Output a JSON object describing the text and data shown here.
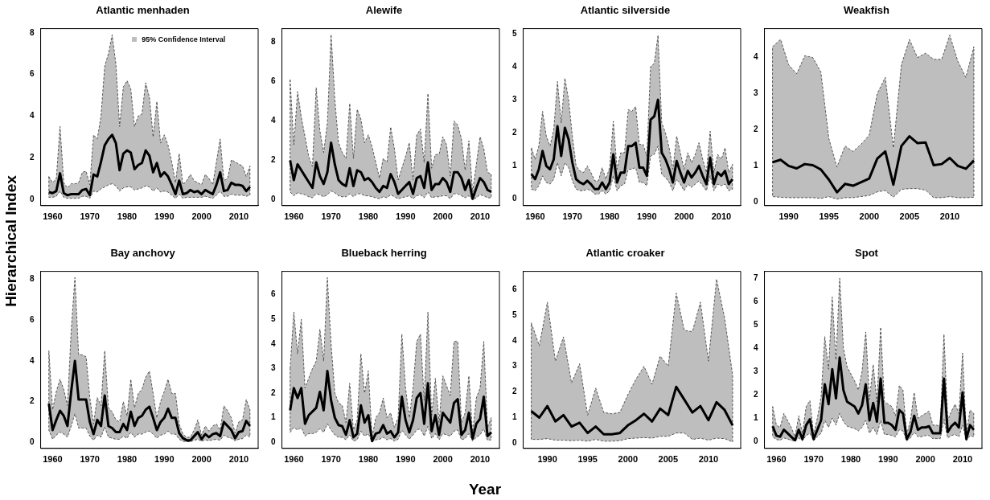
{
  "chart_data": [
    {
      "type": "line",
      "title": "Atlantic menhaden",
      "ylabel": "Hierarchical Index",
      "annotations": [
        "95% Confidence Interval"
      ],
      "xlim": [
        1956.8,
        2015.2
      ],
      "xticks": [
        1960,
        1970,
        1980,
        1990,
        2000,
        2010
      ],
      "ylim": [
        -0.3,
        8.2
      ],
      "yticks": [
        0,
        2,
        4,
        6,
        8
      ],
      "x": [
        1959,
        1960,
        1961,
        1962,
        1963,
        1964,
        1965,
        1966,
        1967,
        1968,
        1969,
        1970,
        1971,
        1972,
        1973,
        1974,
        1975,
        1976,
        1977,
        1978,
        1979,
        1980,
        1981,
        1982,
        1983,
        1984,
        1985,
        1986,
        1987,
        1988,
        1989,
        1990,
        1991,
        1992,
        1993,
        1994,
        1995,
        1996,
        1997,
        1998,
        1999,
        2000,
        2001,
        2002,
        2003,
        2004,
        2005,
        2006,
        2007,
        2008,
        2009,
        2010,
        2011,
        2012,
        2013
      ],
      "series": [
        {
          "color": "#000000",
          "values": [
            0.35,
            0.3,
            0.4,
            1.25,
            0.3,
            0.2,
            0.25,
            0.25,
            0.25,
            0.45,
            0.5,
            0.2,
            1.2,
            1.1,
            1.8,
            2.6,
            2.9,
            3.1,
            2.7,
            1.4,
            2.2,
            2.35,
            2.25,
            1.45,
            1.65,
            1.75,
            2.35,
            2.1,
            1.3,
            1.75,
            1.1,
            1.3,
            1.1,
            0.7,
            0.25,
            0.9,
            0.25,
            0.3,
            0.45,
            0.35,
            0.4,
            0.25,
            0.45,
            0.35,
            0.25,
            0.7,
            1.3,
            0.4,
            0.45,
            0.8,
            0.7,
            0.7,
            0.65,
            0.4,
            0.6
          ],
          "upper": [
            1.1,
            0.8,
            1.0,
            3.5,
            0.8,
            0.55,
            0.75,
            0.75,
            0.8,
            1.3,
            1.35,
            0.7,
            3.1,
            2.9,
            4.0,
            6.4,
            7.0,
            7.9,
            6.5,
            3.5,
            5.4,
            5.7,
            5.3,
            3.5,
            4.0,
            4.1,
            5.6,
            4.9,
            3.0,
            4.7,
            2.7,
            3.1,
            2.6,
            1.8,
            0.8,
            2.2,
            0.7,
            0.9,
            1.2,
            0.9,
            0.8,
            0.7,
            1.2,
            1.0,
            0.7,
            1.8,
            2.9,
            0.9,
            1.0,
            1.9,
            1.8,
            1.7,
            1.6,
            1.1,
            1.6
          ],
          "lower": [
            0.1,
            0.1,
            0.15,
            0.4,
            0.1,
            0.05,
            0.05,
            0.05,
            0.05,
            0.15,
            0.15,
            0.05,
            0.4,
            0.35,
            0.5,
            0.6,
            0.7,
            0.75,
            0.65,
            0.4,
            0.55,
            0.6,
            0.6,
            0.45,
            0.5,
            0.55,
            0.65,
            0.6,
            0.4,
            0.55,
            0.35,
            0.4,
            0.35,
            0.2,
            0.05,
            0.25,
            0.05,
            0.1,
            0.1,
            0.1,
            0.1,
            0.1,
            0.15,
            0.1,
            0.05,
            0.2,
            0.4,
            0.15,
            0.15,
            0.25,
            0.2,
            0.2,
            0.2,
            0.15,
            0.2
          ]
        }
      ]
    },
    {
      "type": "line",
      "title": "Alewife",
      "xlim": [
        1956.8,
        2015.2
      ],
      "xticks": [
        1960,
        1970,
        1980,
        1990,
        2000,
        2010
      ],
      "ylim": [
        -0.3,
        8.7
      ],
      "yticks": [
        0,
        2,
        4,
        6,
        8
      ],
      "x": [
        1959,
        1960,
        1961,
        1962,
        1963,
        1964,
        1965,
        1966,
        1967,
        1968,
        1969,
        1970,
        1971,
        1972,
        1973,
        1974,
        1975,
        1976,
        1977,
        1978,
        1979,
        1980,
        1981,
        1982,
        1983,
        1984,
        1985,
        1986,
        1987,
        1988,
        1989,
        1990,
        1991,
        1992,
        1993,
        1994,
        1995,
        1996,
        1997,
        1998,
        1999,
        2000,
        2001,
        2002,
        2003,
        2004,
        2005,
        2006,
        2007,
        2008,
        2009,
        2010,
        2011,
        2012,
        2013
      ],
      "series": [
        {
          "color": "#000000",
          "values": [
            2.0,
            1.0,
            1.8,
            1.5,
            1.2,
            0.9,
            0.6,
            1.9,
            1.2,
            0.8,
            1.4,
            2.9,
            1.8,
            1.0,
            0.8,
            0.7,
            1.6,
            0.7,
            1.5,
            1.4,
            1.0,
            1.1,
            0.9,
            0.6,
            0.4,
            0.7,
            0.6,
            1.3,
            0.9,
            0.3,
            0.5,
            0.7,
            0.9,
            0.3,
            1.1,
            1.2,
            0.6,
            1.9,
            0.5,
            0.8,
            0.8,
            1.1,
            0.9,
            0.4,
            1.4,
            1.4,
            1.1,
            0.5,
            1.0,
            0.05,
            0.6,
            1.1,
            0.9,
            0.5,
            0.4
          ],
          "upper": [
            6.1,
            2.8,
            5.5,
            4.2,
            3.2,
            2.2,
            1.7,
            5.7,
            3.5,
            2.4,
            3.9,
            8.4,
            5.1,
            2.9,
            2.4,
            2.1,
            4.9,
            2.1,
            4.6,
            4.1,
            2.9,
            3.3,
            2.7,
            1.9,
            1.1,
            2.1,
            1.9,
            3.7,
            2.6,
            1.0,
            1.6,
            2.2,
            2.9,
            1.0,
            3.3,
            3.6,
            1.9,
            5.4,
            1.6,
            2.3,
            2.3,
            3.2,
            2.8,
            1.2,
            4.0,
            3.8,
            3.1,
            1.5,
            3.0,
            0.4,
            1.8,
            3.2,
            2.6,
            1.4,
            1.3
          ],
          "lower": [
            0.4,
            0.2,
            0.35,
            0.3,
            0.25,
            0.15,
            0.1,
            0.3,
            0.25,
            0.15,
            0.25,
            0.45,
            0.35,
            0.2,
            0.15,
            0.15,
            0.3,
            0.15,
            0.3,
            0.3,
            0.2,
            0.2,
            0.15,
            0.1,
            0.05,
            0.15,
            0.1,
            0.25,
            0.15,
            0.05,
            0.1,
            0.15,
            0.2,
            0.05,
            0.2,
            0.25,
            0.1,
            0.4,
            0.1,
            0.15,
            0.15,
            0.2,
            0.2,
            0.05,
            0.3,
            0.3,
            0.2,
            0.1,
            0.2,
            0,
            0.1,
            0.25,
            0.2,
            0.1,
            0.1
          ]
        }
      ]
    },
    {
      "type": "line",
      "title": "Atlantic silverside",
      "xlim": [
        1956.8,
        2015.2
      ],
      "xticks": [
        1960,
        1970,
        1980,
        1990,
        2000,
        2010
      ],
      "ylim": [
        -0.2,
        5.15
      ],
      "yticks": [
        0,
        1,
        2,
        3,
        4,
        5
      ],
      "x": [
        1959,
        1960,
        1961,
        1962,
        1963,
        1964,
        1965,
        1966,
        1967,
        1968,
        1969,
        1970,
        1971,
        1972,
        1973,
        1974,
        1975,
        1976,
        1977,
        1978,
        1979,
        1980,
        1981,
        1982,
        1983,
        1984,
        1985,
        1986,
        1987,
        1988,
        1989,
        1990,
        1991,
        1992,
        1993,
        1994,
        1995,
        1996,
        1997,
        1998,
        1999,
        2000,
        2001,
        2002,
        2003,
        2004,
        2005,
        2006,
        2007,
        2008,
        2009,
        2010,
        2011,
        2012,
        2013
      ],
      "series": [
        {
          "color": "#000000",
          "values": [
            0.75,
            0.6,
            0.9,
            1.45,
            1.0,
            0.9,
            1.2,
            2.2,
            1.3,
            2.15,
            1.8,
            1.1,
            0.6,
            0.5,
            0.45,
            0.55,
            0.45,
            0.3,
            0.3,
            0.5,
            0.3,
            0.5,
            1.35,
            0.5,
            0.8,
            0.8,
            1.6,
            1.6,
            1.7,
            0.95,
            0.95,
            0.7,
            2.4,
            2.5,
            3.0,
            1.4,
            1.2,
            0.9,
            0.5,
            1.15,
            0.8,
            0.5,
            0.85,
            0.65,
            0.8,
            1.0,
            0.7,
            0.45,
            1.25,
            0.45,
            0.8,
            0.7,
            0.85,
            0.45,
            0.6
          ],
          "upper": [
            1.55,
            1.2,
            1.6,
            2.65,
            1.9,
            1.6,
            2.1,
            3.55,
            2.3,
            3.65,
            3.0,
            1.9,
            1.0,
            0.85,
            0.8,
            1.0,
            0.8,
            0.55,
            0.55,
            0.95,
            0.6,
            0.95,
            2.35,
            0.9,
            1.4,
            1.4,
            2.7,
            2.65,
            2.8,
            1.65,
            1.65,
            1.3,
            4.0,
            4.1,
            4.95,
            2.3,
            2.0,
            1.55,
            0.9,
            1.9,
            1.4,
            0.9,
            1.4,
            1.1,
            1.35,
            1.7,
            1.2,
            0.8,
            2.05,
            0.8,
            1.35,
            1.2,
            1.55,
            0.8,
            1.05
          ],
          "lower": [
            0.3,
            0.25,
            0.4,
            0.7,
            0.5,
            0.45,
            0.6,
            1.1,
            0.7,
            1.1,
            0.95,
            0.55,
            0.3,
            0.25,
            0.25,
            0.3,
            0.25,
            0.15,
            0.15,
            0.25,
            0.15,
            0.25,
            0.7,
            0.25,
            0.4,
            0.45,
            0.9,
            0.9,
            0.95,
            0.5,
            0.5,
            0.4,
            1.3,
            1.35,
            1.6,
            0.75,
            0.65,
            0.5,
            0.25,
            0.6,
            0.45,
            0.25,
            0.45,
            0.35,
            0.45,
            0.55,
            0.4,
            0.25,
            0.7,
            0.25,
            0.45,
            0.4,
            0.45,
            0.25,
            0.3
          ]
        }
      ]
    },
    {
      "type": "line",
      "title": "Weakfish",
      "xlim": [
        1987,
        2014
      ],
      "xticks": [
        1990,
        1995,
        2000,
        2005,
        2010
      ],
      "ylim": [
        -0.1,
        4.8
      ],
      "yticks": [
        0,
        1,
        2,
        3,
        4
      ],
      "x": [
        1988,
        1989,
        1990,
        1991,
        1992,
        1993,
        1994,
        1995,
        1996,
        1997,
        1998,
        1999,
        2000,
        2001,
        2002,
        2003,
        2004,
        2005,
        2006,
        2007,
        2008,
        2009,
        2010,
        2011,
        2012,
        2013
      ],
      "series": [
        {
          "color": "#000000",
          "values": [
            1.1,
            1.17,
            1.0,
            0.93,
            1.05,
            1.02,
            0.9,
            0.62,
            0.27,
            0.5,
            0.45,
            0.55,
            0.65,
            1.2,
            1.4,
            0.48,
            1.55,
            1.82,
            1.63,
            1.65,
            1.02,
            1.05,
            1.22,
            1.0,
            0.92,
            1.15
          ],
          "upper": [
            4.3,
            4.5,
            3.8,
            3.55,
            4.05,
            4.0,
            3.6,
            1.75,
            0.97,
            1.55,
            1.4,
            1.6,
            1.85,
            3.0,
            3.45,
            1.5,
            3.8,
            4.5,
            4.0,
            4.12,
            3.95,
            3.95,
            4.62,
            3.9,
            3.45,
            4.3
          ],
          "lower": [
            0.15,
            0.13,
            0.12,
            0.12,
            0.12,
            0.12,
            0.1,
            0.15,
            0.08,
            0.12,
            0.12,
            0.15,
            0.18,
            0.28,
            0.32,
            0.13,
            0.35,
            0.37,
            0.37,
            0.33,
            0.12,
            0.12,
            0.15,
            0.12,
            0.12,
            0.13
          ]
        }
      ]
    },
    {
      "type": "line",
      "title": "Bay anchovy",
      "xlim": [
        1956.8,
        2015.2
      ],
      "xticks": [
        1960,
        1970,
        1980,
        1990,
        2000,
        2010
      ],
      "ylim": [
        -0.3,
        8.4
      ],
      "yticks": [
        0,
        2,
        4,
        6,
        8
      ],
      "x": [
        1959,
        1960,
        1961,
        1962,
        1963,
        1964,
        1965,
        1966,
        1967,
        1968,
        1969,
        1970,
        1971,
        1972,
        1973,
        1974,
        1975,
        1976,
        1977,
        1978,
        1979,
        1980,
        1981,
        1982,
        1983,
        1984,
        1985,
        1986,
        1987,
        1988,
        1989,
        1990,
        1991,
        1992,
        1993,
        1994,
        1995,
        1996,
        1997,
        1998,
        1999,
        2000,
        2001,
        2002,
        2003,
        2004,
        2005,
        2006,
        2007,
        2008,
        2009,
        2010,
        2011,
        2012,
        2013
      ],
      "series": [
        {
          "color": "#000000",
          "values": [
            1.9,
            0.6,
            1.1,
            1.55,
            1.3,
            0.8,
            2.5,
            4.0,
            2.1,
            2.1,
            2.1,
            1.0,
            0.4,
            1.1,
            0.8,
            2.3,
            0.8,
            0.7,
            0.5,
            0.5,
            0.9,
            0.6,
            1.5,
            0.8,
            1.2,
            1.3,
            1.6,
            1.75,
            1.2,
            0.6,
            1.0,
            1.2,
            1.65,
            1.2,
            1.2,
            0.45,
            0.2,
            0.1,
            0.1,
            0.3,
            0.5,
            0.15,
            0.4,
            0.25,
            0.4,
            0.45,
            0.3,
            1.0,
            0.8,
            0.6,
            0.2,
            0.5,
            0.55,
            1.05,
            0.8
          ],
          "upper": [
            4.5,
            1.6,
            2.5,
            3.1,
            2.6,
            1.8,
            5.5,
            8.1,
            4.3,
            4.3,
            4.2,
            2.2,
            0.9,
            2.2,
            1.8,
            4.5,
            1.7,
            1.5,
            1.1,
            1.0,
            2.0,
            1.3,
            3.1,
            1.7,
            2.4,
            2.6,
            3.2,
            3.5,
            2.4,
            1.2,
            2.0,
            2.5,
            3.1,
            2.4,
            2.4,
            0.9,
            0.4,
            0.25,
            0.25,
            0.6,
            1.1,
            0.35,
            0.8,
            0.55,
            0.8,
            0.9,
            0.6,
            1.8,
            1.55,
            1.2,
            0.45,
            1.0,
            1.1,
            2.1,
            1.6
          ],
          "lower": [
            0.6,
            0.15,
            0.35,
            0.5,
            0.4,
            0.25,
            0.8,
            1.4,
            0.7,
            0.7,
            0.7,
            0.3,
            0.1,
            0.35,
            0.25,
            0.75,
            0.25,
            0.2,
            0.15,
            0.15,
            0.3,
            0.2,
            0.5,
            0.25,
            0.4,
            0.4,
            0.5,
            0.55,
            0.4,
            0.2,
            0.35,
            0.4,
            0.55,
            0.4,
            0.4,
            0.15,
            0.05,
            0.03,
            0.03,
            0.1,
            0.15,
            0.05,
            0.12,
            0.08,
            0.12,
            0.15,
            0.1,
            0.35,
            0.25,
            0.2,
            0.07,
            0.15,
            0.18,
            0.35,
            0.27
          ]
        }
      ]
    },
    {
      "type": "line",
      "title": "Blueback herring",
      "xlabel": "Year",
      "xlim": [
        1956.8,
        2015.2
      ],
      "xticks": [
        1960,
        1970,
        1980,
        1990,
        2000,
        2010
      ],
      "ylim": [
        -0.25,
        6.95
      ],
      "yticks": [
        0,
        1,
        2,
        3,
        4,
        5,
        6
      ],
      "x": [
        1959,
        1960,
        1961,
        1962,
        1963,
        1964,
        1965,
        1966,
        1967,
        1968,
        1969,
        1970,
        1971,
        1972,
        1973,
        1974,
        1975,
        1976,
        1977,
        1978,
        1979,
        1980,
        1981,
        1982,
        1983,
        1984,
        1985,
        1986,
        1987,
        1988,
        1989,
        1990,
        1991,
        1992,
        1993,
        1994,
        1995,
        1996,
        1997,
        1998,
        1999,
        2000,
        2001,
        2002,
        2003,
        2004,
        2005,
        2006,
        2007,
        2008,
        2009,
        2010,
        2011,
        2012,
        2013
      ],
      "series": [
        {
          "color": "#000000",
          "values": [
            1.3,
            2.2,
            1.8,
            2.2,
            0.75,
            1.1,
            1.25,
            1.4,
            2.05,
            1.3,
            2.9,
            1.7,
            1.0,
            0.7,
            0.65,
            0.3,
            0.9,
            0.2,
            0.35,
            1.5,
            0.8,
            1.1,
            0.05,
            0.35,
            0.4,
            0.7,
            0.35,
            0.45,
            0.2,
            0.4,
            1.85,
            0.9,
            0.4,
            0.9,
            1.8,
            2.0,
            0.75,
            2.4,
            0.45,
            1.1,
            0.3,
            1.2,
            1.0,
            0.8,
            1.6,
            1.75,
            0.3,
            0.5,
            1.2,
            0.15,
            0.75,
            0.95,
            1.85,
            0.25,
            0.4
          ],
          "upper": [
            3.0,
            5.3,
            3.6,
            5.0,
            2.2,
            2.6,
            3.0,
            3.3,
            4.6,
            3.3,
            6.7,
            4.0,
            2.0,
            1.6,
            1.5,
            0.8,
            2.4,
            0.5,
            0.9,
            3.6,
            2.0,
            2.9,
            0.2,
            1.0,
            1.2,
            1.8,
            1.0,
            1.2,
            0.6,
            1.0,
            4.4,
            2.2,
            1.0,
            2.2,
            4.1,
            4.4,
            1.7,
            5.3,
            1.1,
            2.6,
            0.8,
            2.7,
            2.3,
            1.9,
            4.1,
            4.1,
            0.8,
            1.2,
            2.7,
            0.35,
            1.8,
            2.2,
            4.1,
            0.6,
            1.0
          ],
          "lower": [
            0.4,
            0.6,
            0.5,
            0.6,
            0.25,
            0.35,
            0.35,
            0.4,
            0.55,
            0.4,
            0.75,
            0.5,
            0.3,
            0.2,
            0.2,
            0.1,
            0.3,
            0.05,
            0.1,
            0.45,
            0.25,
            0.35,
            0.01,
            0.1,
            0.12,
            0.2,
            0.1,
            0.15,
            0.05,
            0.12,
            0.5,
            0.3,
            0.12,
            0.3,
            0.5,
            0.55,
            0.25,
            0.65,
            0.15,
            0.35,
            0.1,
            0.35,
            0.3,
            0.25,
            0.45,
            0.5,
            0.1,
            0.15,
            0.35,
            0.05,
            0.2,
            0.3,
            0.55,
            0.08,
            0.1
          ]
        }
      ]
    },
    {
      "type": "line",
      "title": "Atlantic croaker",
      "xlim": [
        1987,
        2014
      ],
      "xticks": [
        1990,
        1995,
        2000,
        2005,
        2010
      ],
      "ylim": [
        -0.2,
        6.7
      ],
      "yticks": [
        0,
        1,
        2,
        3,
        4,
        5,
        6
      ],
      "x": [
        1988,
        1989,
        1990,
        1991,
        1992,
        1993,
        1994,
        1995,
        1996,
        1997,
        1998,
        1999,
        2000,
        2001,
        2002,
        2003,
        2004,
        2005,
        2006,
        2007,
        2008,
        2009,
        2010,
        2011,
        2012,
        2013
      ],
      "series": [
        {
          "color": "#000000",
          "values": [
            1.25,
            1.0,
            1.45,
            0.85,
            1.1,
            0.65,
            0.8,
            0.4,
            0.65,
            0.35,
            0.35,
            0.4,
            0.7,
            0.9,
            1.15,
            0.85,
            1.35,
            1.1,
            2.2,
            1.7,
            1.2,
            1.45,
            0.9,
            1.6,
            1.3,
            0.7
          ],
          "upper": [
            4.7,
            3.8,
            5.5,
            3.2,
            4.15,
            2.35,
            3.1,
            1.1,
            2.15,
            1.2,
            1.15,
            1.2,
            1.9,
            2.5,
            3.0,
            2.3,
            3.4,
            3.0,
            5.85,
            4.4,
            4.35,
            5.5,
            3.2,
            6.4,
            4.9,
            2.65
          ],
          "lower": [
            0.15,
            0.15,
            0.18,
            0.12,
            0.12,
            0.1,
            0.12,
            0.08,
            0.15,
            0.08,
            0.08,
            0.1,
            0.18,
            0.2,
            0.22,
            0.2,
            0.27,
            0.27,
            0.4,
            0.4,
            0.15,
            0.2,
            0.12,
            0.2,
            0.18,
            0.05
          ]
        }
      ]
    },
    {
      "type": "line",
      "title": "Spot",
      "xlim": [
        1956.8,
        2015.2
      ],
      "xticks": [
        1960,
        1970,
        1980,
        1990,
        2000,
        2010
      ],
      "ylim": [
        -0.3,
        7.3
      ],
      "yticks": [
        0,
        1,
        2,
        3,
        4,
        5,
        6,
        7
      ],
      "x": [
        1959,
        1960,
        1961,
        1962,
        1963,
        1964,
        1965,
        1966,
        1967,
        1968,
        1969,
        1970,
        1971,
        1972,
        1973,
        1974,
        1975,
        1976,
        1977,
        1978,
        1979,
        1980,
        1981,
        1982,
        1983,
        1984,
        1985,
        1986,
        1987,
        1988,
        1989,
        1990,
        1991,
        1992,
        1993,
        1994,
        1995,
        1996,
        1997,
        1998,
        1999,
        2000,
        2001,
        2002,
        2003,
        2004,
        2005,
        2006,
        2007,
        2008,
        2009,
        2010,
        2011,
        2012,
        2013
      ],
      "series": [
        {
          "color": "#000000",
          "values": [
            0.65,
            0.25,
            0.2,
            0.5,
            0.35,
            0.2,
            0.05,
            0.5,
            0.1,
            0.7,
            0.95,
            0.1,
            0.5,
            0.9,
            2.45,
            1.6,
            3.1,
            1.85,
            3.6,
            2.2,
            1.7,
            1.6,
            1.5,
            1.2,
            1.55,
            2.45,
            0.9,
            1.65,
            0.85,
            2.7,
            0.8,
            0.8,
            0.7,
            0.5,
            1.35,
            1.2,
            0.1,
            0.4,
            1.1,
            0.5,
            0.6,
            0.6,
            0.65,
            0.35,
            0.35,
            0.35,
            2.7,
            0.4,
            0.65,
            0.8,
            0.6,
            2.1,
            0.1,
            0.7,
            0.5
          ],
          "upper": [
            1.5,
            0.7,
            0.6,
            1.2,
            0.9,
            0.6,
            0.2,
            1.1,
            0.35,
            1.5,
            1.75,
            0.3,
            1.0,
            1.9,
            4.5,
            3.1,
            6.2,
            3.5,
            7.0,
            4.0,
            3.2,
            2.9,
            2.6,
            2.2,
            3.0,
            4.7,
            1.8,
            3.3,
            1.7,
            4.9,
            1.7,
            1.6,
            1.5,
            1.1,
            2.4,
            2.2,
            0.3,
            0.9,
            2.1,
            1.0,
            1.1,
            1.2,
            1.3,
            0.7,
            0.7,
            0.65,
            4.6,
            0.9,
            1.3,
            1.6,
            1.2,
            3.8,
            0.3,
            1.35,
            1.2
          ],
          "lower": [
            0.2,
            0.08,
            0.05,
            0.15,
            0.1,
            0.05,
            0.01,
            0.15,
            0.03,
            0.25,
            0.35,
            0.03,
            0.2,
            0.35,
            0.9,
            0.6,
            1.0,
            0.7,
            1.2,
            0.85,
            0.65,
            0.6,
            0.55,
            0.45,
            0.6,
            0.9,
            0.35,
            0.6,
            0.3,
            0.9,
            0.3,
            0.3,
            0.25,
            0.2,
            0.5,
            0.45,
            0.03,
            0.15,
            0.4,
            0.2,
            0.2,
            0.25,
            0.25,
            0.12,
            0.12,
            0.12,
            0.95,
            0.15,
            0.25,
            0.3,
            0.2,
            0.7,
            0.03,
            0.25,
            0.2
          ]
        }
      ]
    }
  ]
}
